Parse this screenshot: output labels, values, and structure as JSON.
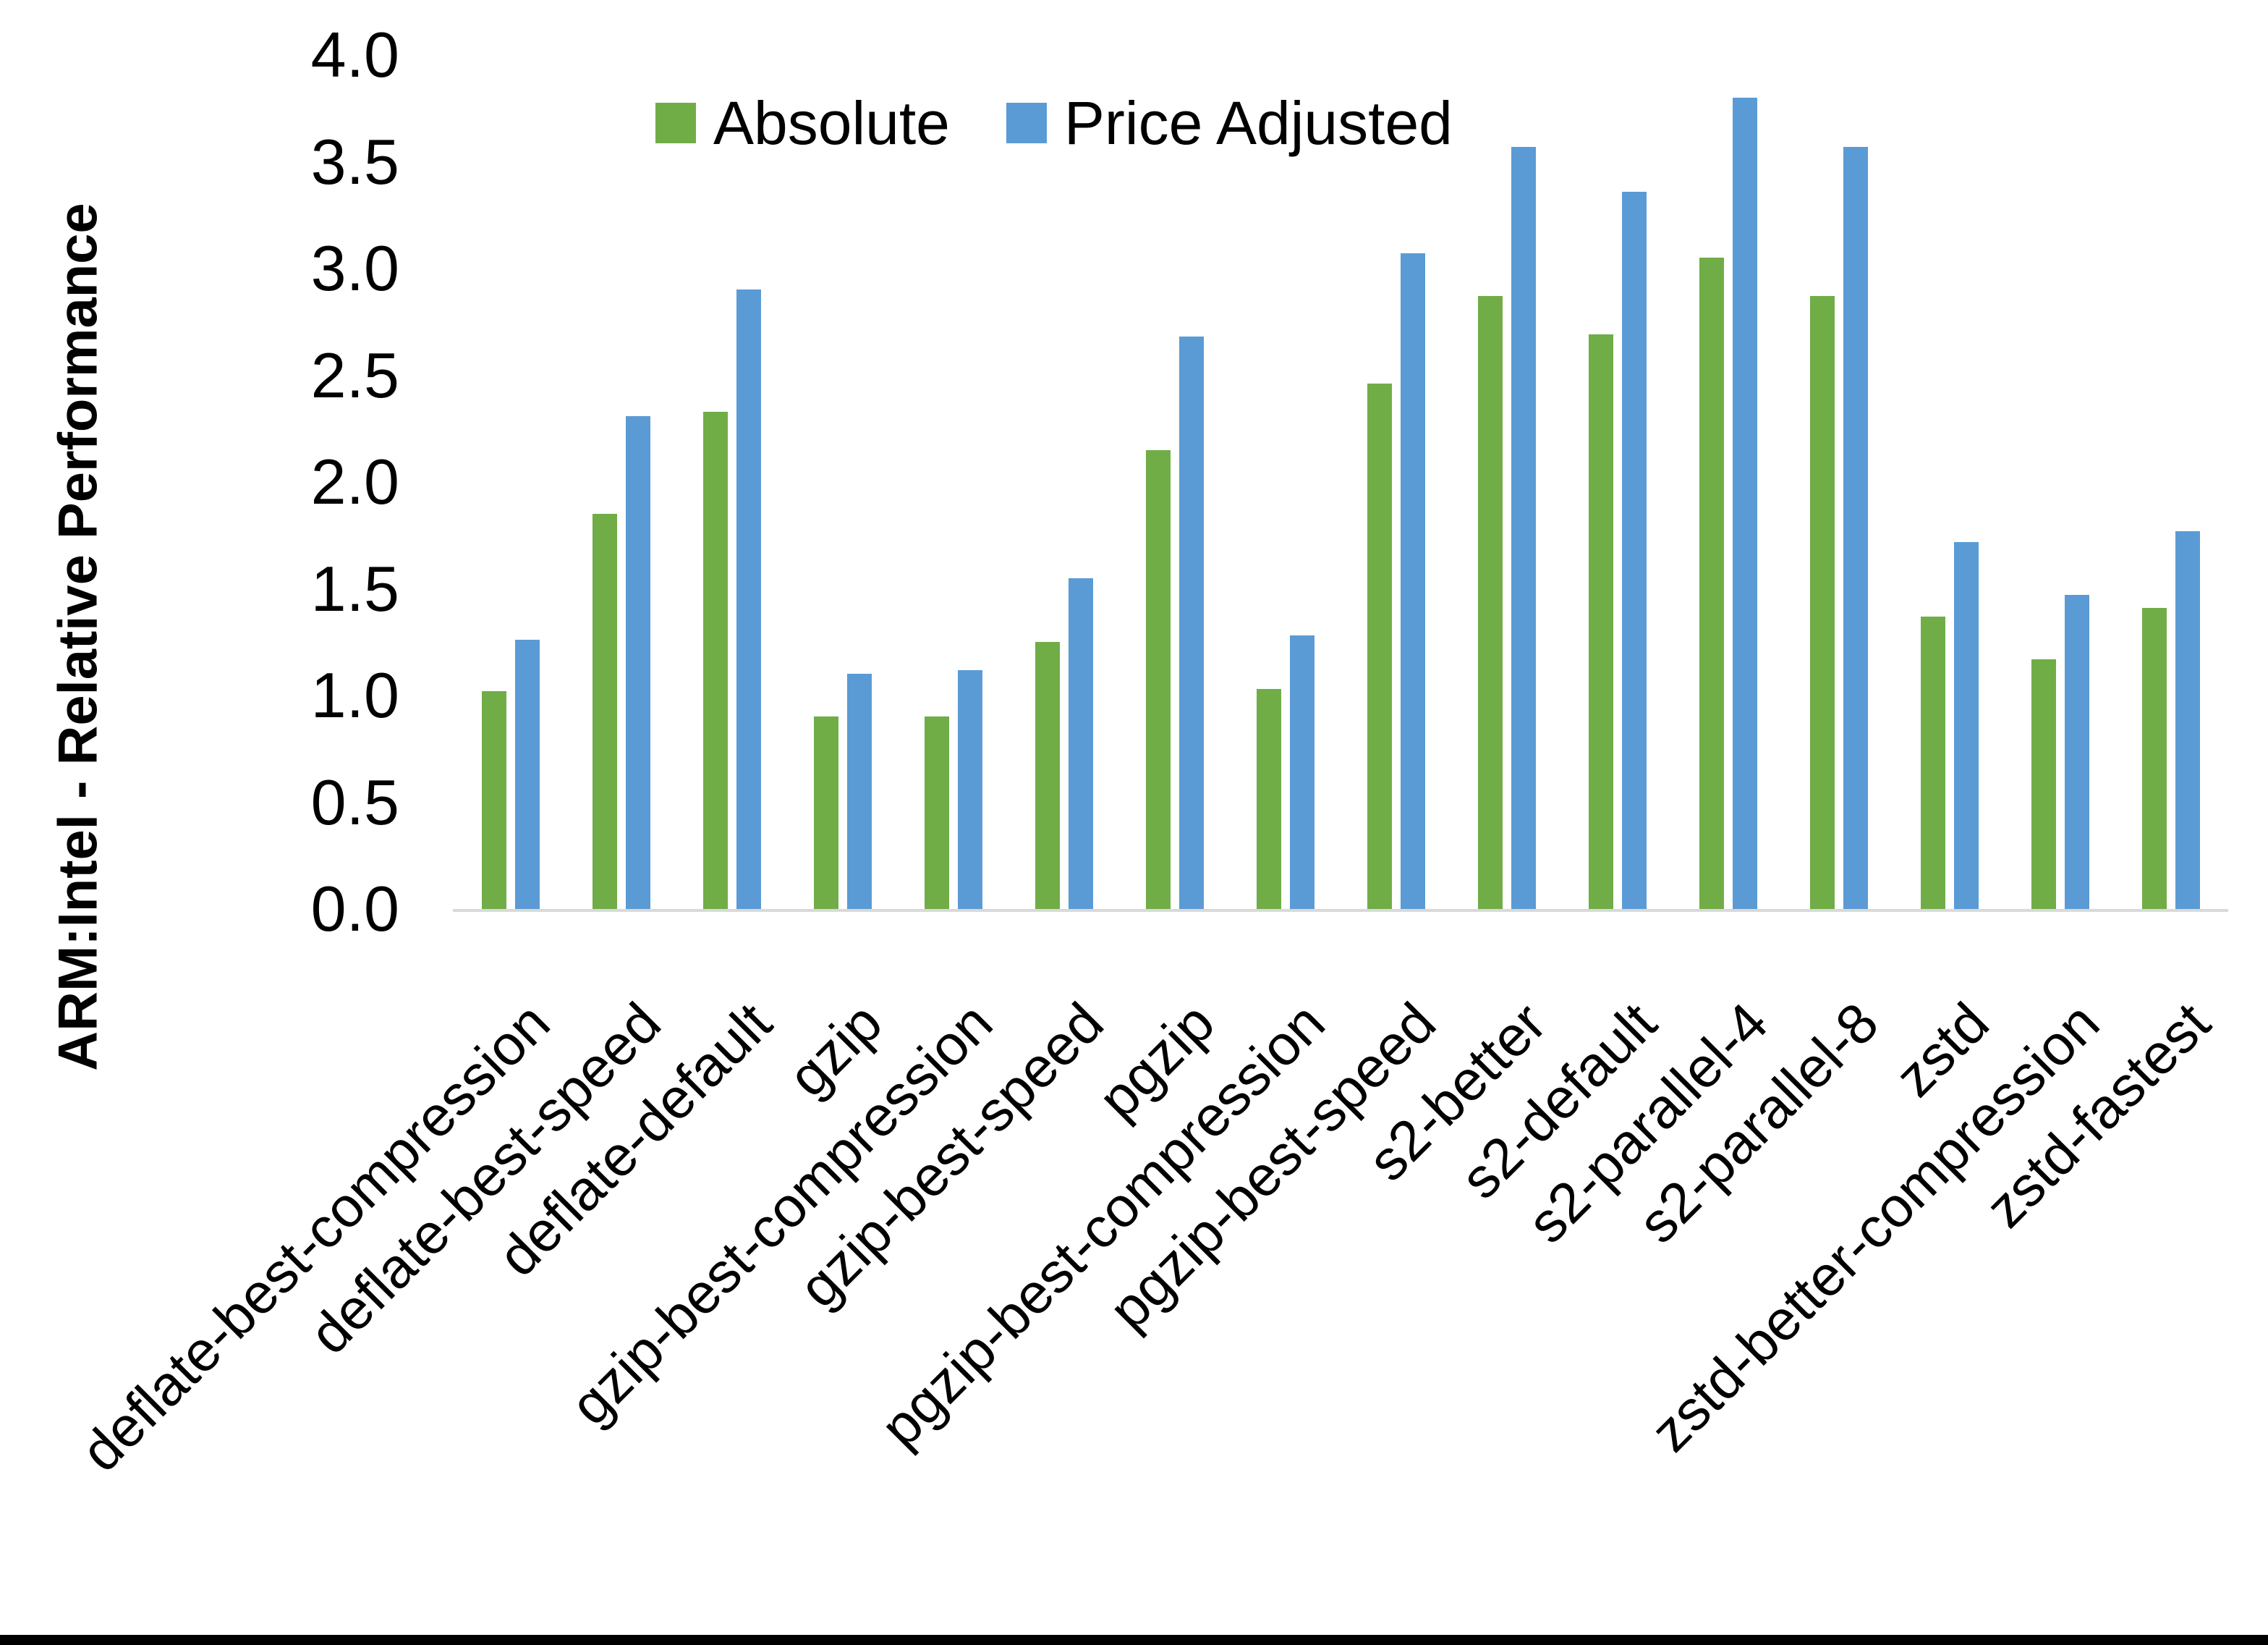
{
  "chart_data": {
    "type": "bar",
    "title": "",
    "ylabel": "ARM:Intel - Relative Performance",
    "xlabel": "",
    "ylim": [
      0.0,
      4.0
    ],
    "ytick_labels": [
      "0.0",
      "0.5",
      "1.0",
      "1.5",
      "2.0",
      "2.5",
      "3.0",
      "3.5",
      "4.0"
    ],
    "grid": false,
    "legend_position": "top-center",
    "axis_line_color": "#d9d9d9",
    "text_color": "#000000",
    "categories": [
      "deflate-best-compression",
      "deflate-best-speed",
      "deflate-default",
      "gzip",
      "gzip-best-compression",
      "gzip-best-speed",
      "pgzip",
      "pgzip-best-compression",
      "pgzip-best-speed",
      "s2-better",
      "s2-default",
      "s2-parallel-4",
      "s2-parallel-8",
      "zstd",
      "zstd-better-compression",
      "zstd-fastest"
    ],
    "series": [
      {
        "name": "Absolute",
        "color": "#70AD47",
        "values": [
          1.02,
          1.85,
          2.33,
          0.9,
          0.9,
          1.25,
          2.15,
          1.03,
          2.46,
          2.87,
          2.69,
          3.05,
          2.87,
          1.37,
          1.17,
          1.41
        ]
      },
      {
        "name": "Price Adjusted",
        "color": "#5B9BD5",
        "values": [
          1.26,
          2.31,
          2.9,
          1.1,
          1.12,
          1.55,
          2.68,
          1.28,
          3.07,
          3.57,
          3.36,
          3.8,
          3.57,
          1.72,
          1.47,
          1.77
        ]
      }
    ]
  }
}
